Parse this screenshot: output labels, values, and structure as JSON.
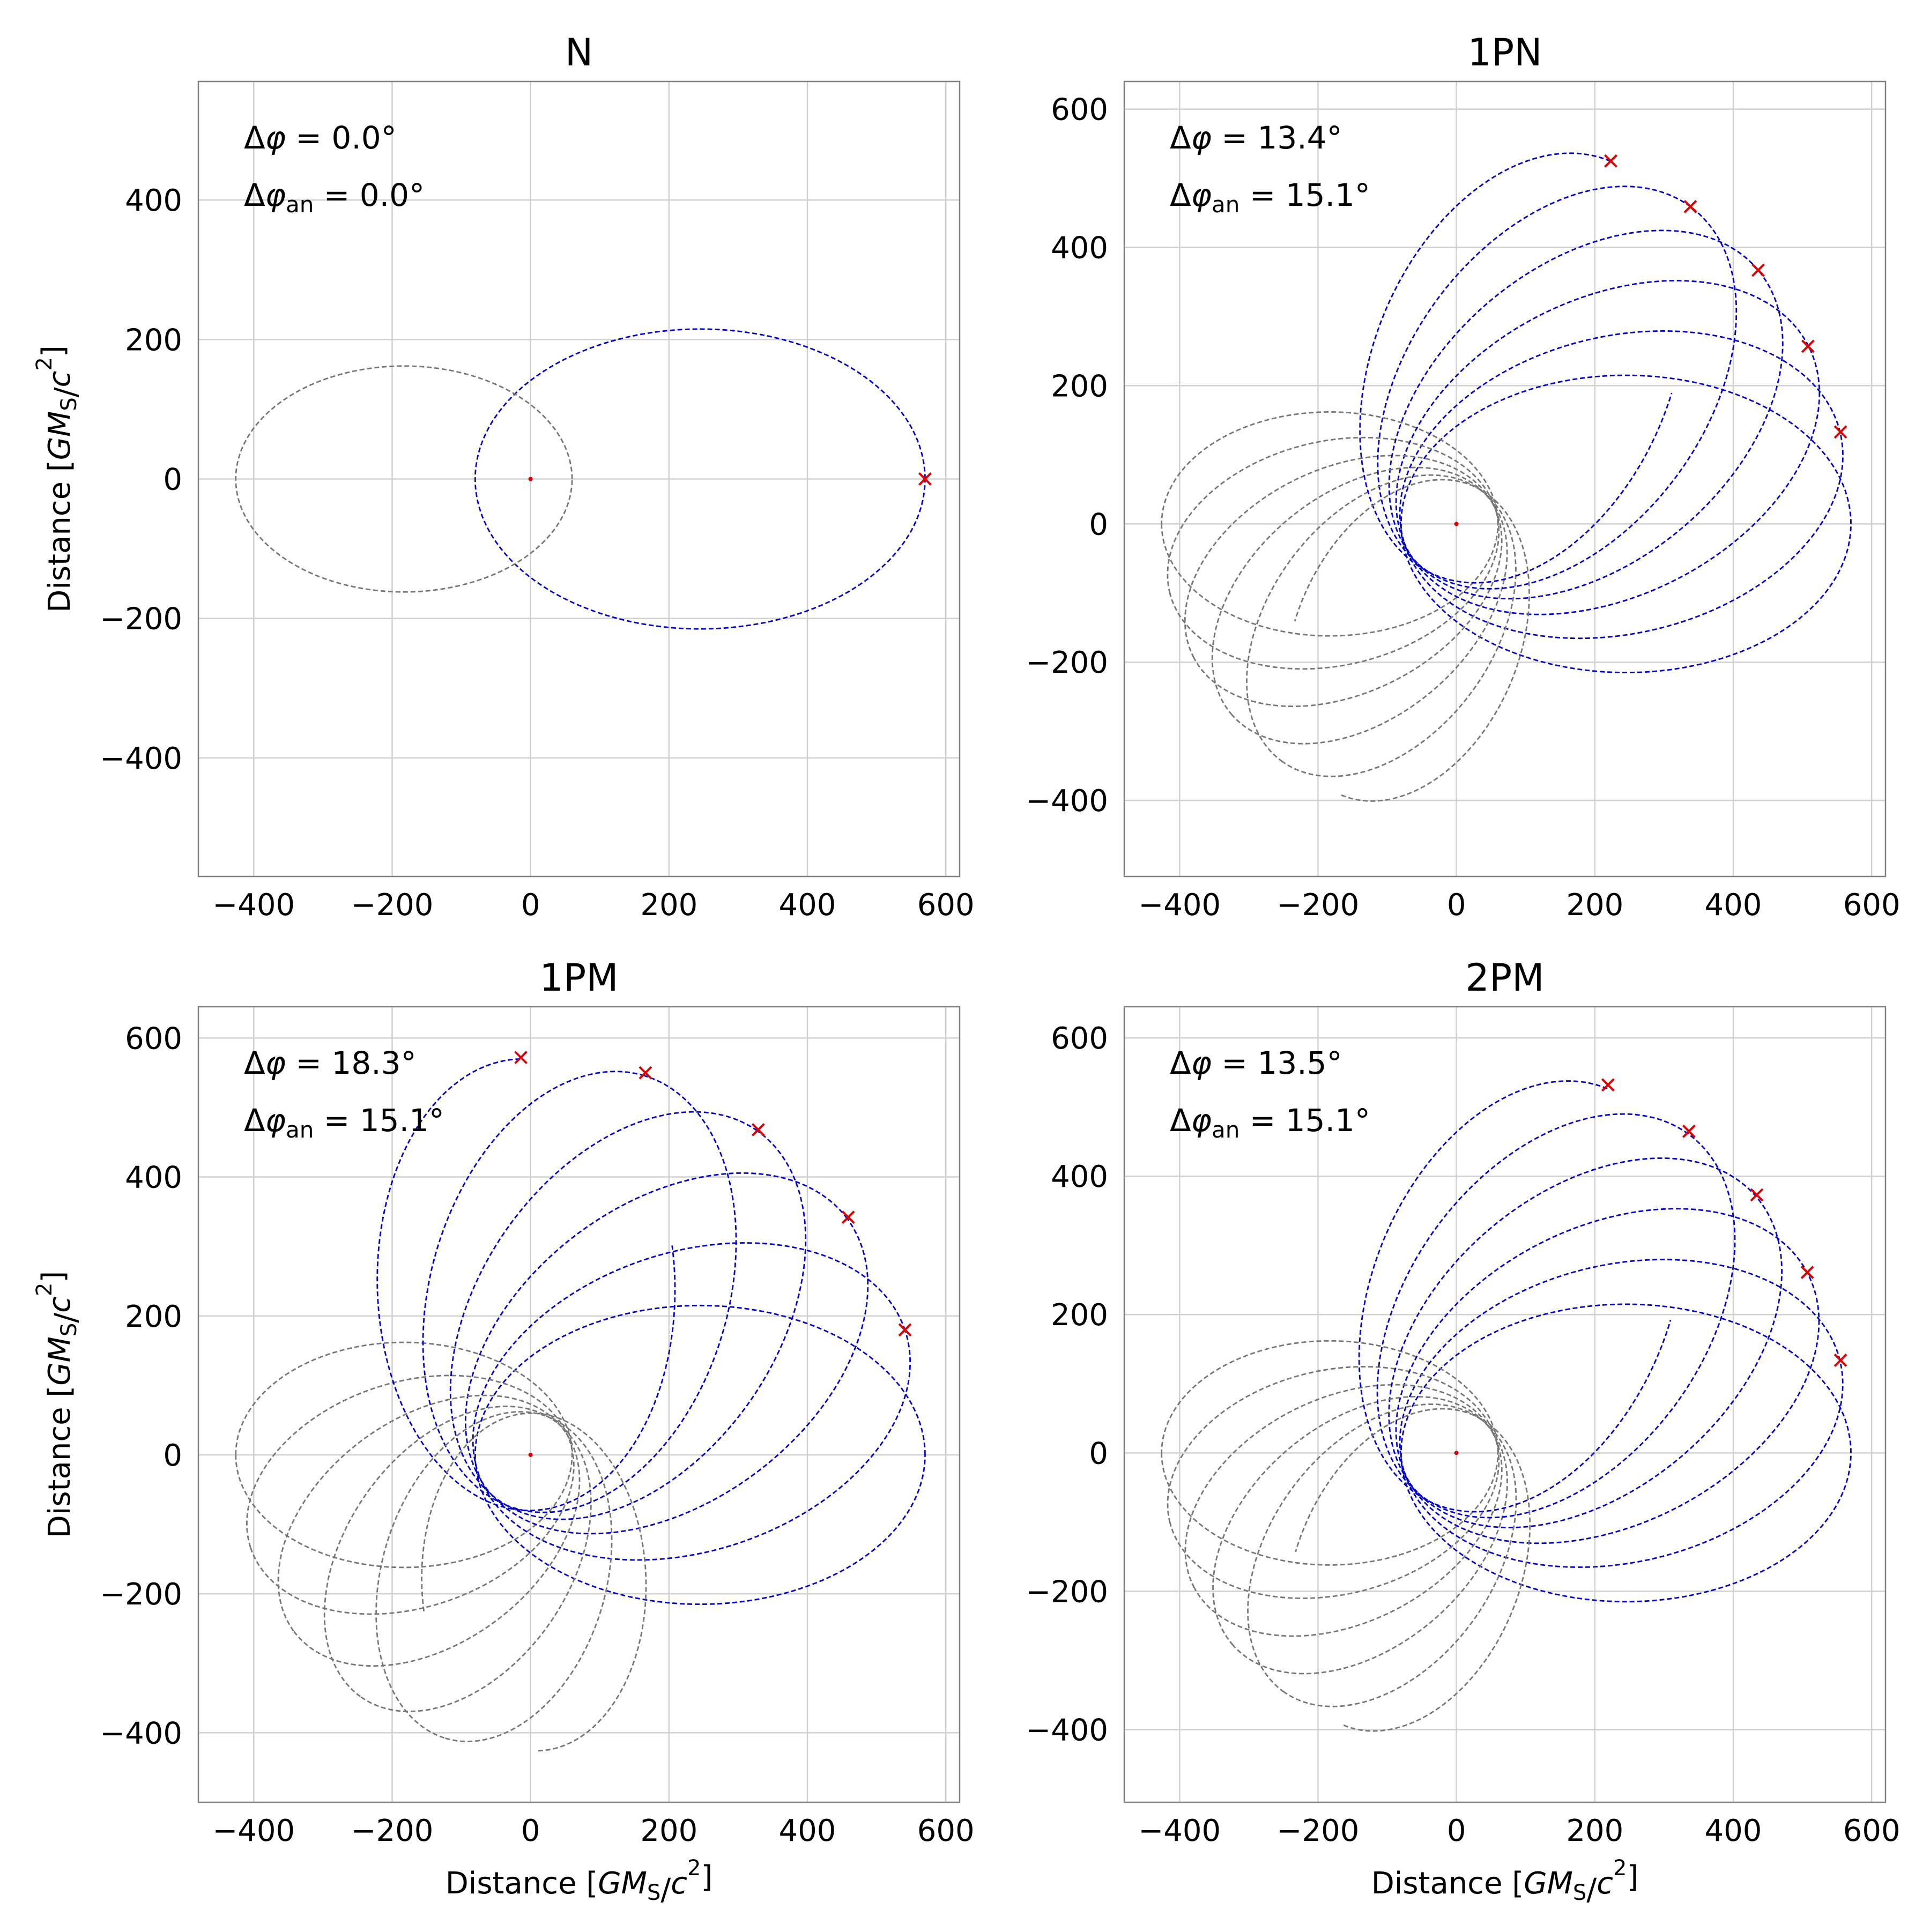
{
  "chart_data": [
    {
      "type": "line",
      "title": "N",
      "xlabel": "",
      "ylabel": "Distance [GM_S/c²]",
      "xlim": [
        -480,
        620
      ],
      "ylim": [
        -570,
        570
      ],
      "xticks": [
        -400,
        -200,
        0,
        200,
        400,
        600
      ],
      "yticks": [
        -400,
        -200,
        0,
        200,
        400
      ],
      "annotations": [
        "Δφ = 0.0°",
        "Δφan = 0.0°"
      ],
      "delta_phi": "0.0°",
      "delta_phi_an": "0.0°",
      "grid": true,
      "colors": {
        "orbit": "#0000cc",
        "companion": "#777777",
        "marker": "#dd0000"
      },
      "orbits": [
        {
          "kind": "blue",
          "cx": 245,
          "cy": 0,
          "a": 325,
          "b": 215,
          "rot": 0
        },
        {
          "kind": "grey",
          "cx": -183,
          "cy": 0,
          "a": 243,
          "b": 162,
          "rot": 0
        }
      ],
      "markers": [
        [
          570,
          0
        ]
      ]
    },
    {
      "type": "line",
      "title": "1PN",
      "xlabel": "",
      "ylabel": "",
      "xlim": [
        -480,
        620
      ],
      "ylim": [
        -510,
        640
      ],
      "xticks": [
        -400,
        -200,
        0,
        200,
        400,
        600
      ],
      "yticks": [
        -400,
        -200,
        0,
        200,
        400,
        600
      ],
      "annotations": [
        "Δφ = 13.4°",
        "Δφan = 15.1°"
      ],
      "delta_phi": "13.4°",
      "delta_phi_an": "15.1°",
      "grid": true,
      "colors": {
        "orbit": "#0000cc",
        "companion": "#777777",
        "marker": "#dd0000"
      },
      "precession_deg": 13.4,
      "n_orbits": 6,
      "orbit_params": {
        "a": 325,
        "b": 215,
        "focus": 80,
        "a2": 243,
        "b2": 162
      },
      "markers": [
        [
          555,
          133
        ],
        [
          508,
          257
        ],
        [
          436,
          367
        ],
        [
          338,
          459
        ],
        [
          223,
          525
        ]
      ]
    },
    {
      "type": "line",
      "title": "1PM",
      "xlabel": "Distance [GM_S/c²]",
      "ylabel": "Distance [GM_S/c²]",
      "xlim": [
        -480,
        620
      ],
      "ylim": [
        -500,
        645
      ],
      "xticks": [
        -400,
        -200,
        0,
        200,
        400,
        600
      ],
      "yticks": [
        -400,
        -200,
        0,
        200,
        400,
        600
      ],
      "annotations": [
        "Δφ = 18.3°",
        "Δφan = 15.1°"
      ],
      "delta_phi": "18.3°",
      "delta_phi_an": "15.1°",
      "grid": true,
      "colors": {
        "orbit": "#0000cc",
        "companion": "#777777",
        "marker": "#dd0000"
      },
      "precession_deg": 18.3,
      "n_orbits": 6,
      "orbit_params": {
        "a": 325,
        "b": 215,
        "focus": 80,
        "a2": 243,
        "b2": 162
      },
      "markers": [
        [
          541,
          180
        ],
        [
          459,
          342
        ],
        [
          329,
          468
        ],
        [
          166,
          550
        ],
        [
          -14,
          572
        ]
      ]
    },
    {
      "type": "line",
      "title": "2PM",
      "xlabel": "Distance [GM_S/c²]",
      "ylabel": "",
      "xlim": [
        -480,
        620
      ],
      "ylim": [
        -505,
        645
      ],
      "xticks": [
        -400,
        -200,
        0,
        200,
        400,
        600
      ],
      "yticks": [
        -400,
        -200,
        0,
        200,
        400,
        600
      ],
      "annotations": [
        "Δφ = 13.5°",
        "Δφan = 15.1°"
      ],
      "delta_phi": "13.5°",
      "delta_phi_an": "15.1°",
      "grid": true,
      "colors": {
        "orbit": "#0000cc",
        "companion": "#777777",
        "marker": "#dd0000"
      },
      "precession_deg": 13.5,
      "n_orbits": 6,
      "orbit_params": {
        "a": 325,
        "b": 215,
        "focus": 80,
        "a2": 243,
        "b2": 162
      },
      "markers": [
        [
          555,
          134
        ],
        [
          507,
          261
        ],
        [
          434,
          373
        ],
        [
          336,
          465
        ],
        [
          219,
          532
        ]
      ]
    }
  ]
}
